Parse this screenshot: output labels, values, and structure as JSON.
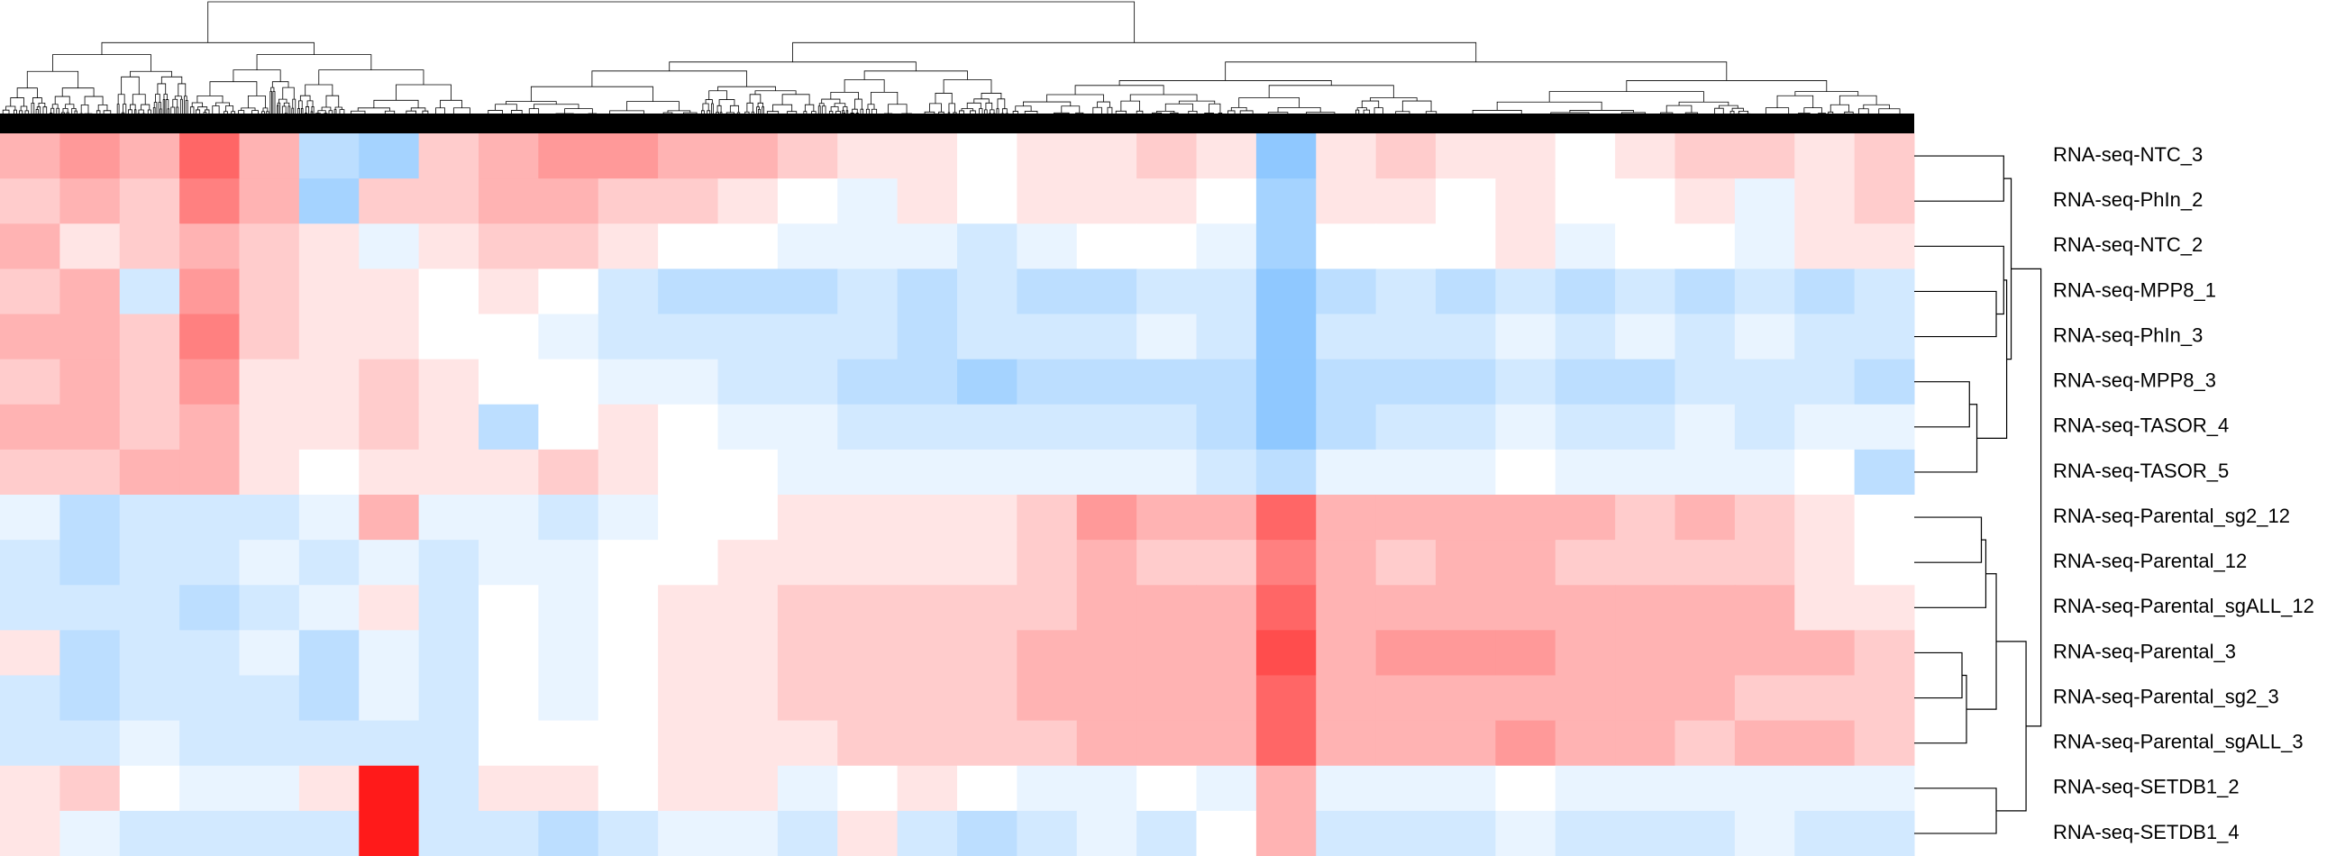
{
  "chart_data": {
    "type": "heatmap",
    "rows": [
      "RNA-seq-NTC_3",
      "RNA-seq-PhIn_2",
      "RNA-seq-NTC_2",
      "RNA-seq-MPP8_1",
      "RNA-seq-PhIn_3",
      "RNA-seq-MPP8_3",
      "RNA-seq-TASOR_4",
      "RNA-seq-TASOR_5",
      "RNA-seq-Parental_sg2_12",
      "RNA-seq-Parental_12",
      "RNA-seq-Parental_sgALL_12",
      "RNA-seq-Parental_3",
      "RNA-seq-Parental_sg2_3",
      "RNA-seq-Parental_sgALL_3",
      "RNA-seq-SETDB1_2",
      "RNA-seq-SETDB1_4"
    ],
    "colors": [
      "#1e90ff",
      "#ffffff",
      "#ff0000"
    ],
    "zlim": [
      -1,
      1
    ],
    "values": [
      [
        0.3,
        0.4,
        0.3,
        0.6,
        0.3,
        -0.3,
        -0.4,
        0.2,
        0.3,
        0.4,
        0.4,
        0.3,
        0.3,
        0.2,
        0.1,
        0.1,
        0.0,
        0.1,
        0.1,
        0.2,
        0.1,
        -0.5,
        0.1,
        0.2,
        0.1,
        0.1,
        0.0,
        0.1,
        0.2,
        0.2,
        0.1,
        0.2
      ],
      [
        0.2,
        0.3,
        0.2,
        0.5,
        0.3,
        -0.4,
        0.2,
        0.2,
        0.3,
        0.3,
        0.2,
        0.2,
        0.1,
        0.0,
        -0.1,
        0.1,
        0.0,
        0.1,
        0.1,
        0.1,
        0.0,
        -0.4,
        0.1,
        0.1,
        0.0,
        0.1,
        0.0,
        0.0,
        0.1,
        -0.1,
        0.1,
        0.2
      ],
      [
        0.3,
        0.1,
        0.2,
        0.3,
        0.2,
        0.1,
        -0.1,
        0.1,
        0.2,
        0.2,
        0.1,
        0.0,
        0.0,
        -0.1,
        -0.1,
        -0.1,
        -0.2,
        -0.1,
        0.0,
        0.0,
        -0.1,
        -0.4,
        0.0,
        0.0,
        0.0,
        0.1,
        -0.1,
        0.0,
        0.0,
        -0.1,
        0.1,
        0.1
      ],
      [
        0.2,
        0.3,
        -0.2,
        0.4,
        0.2,
        0.1,
        0.1,
        0.0,
        0.1,
        0.0,
        -0.2,
        -0.3,
        -0.3,
        -0.3,
        -0.2,
        -0.3,
        -0.2,
        -0.3,
        -0.3,
        -0.2,
        -0.2,
        -0.5,
        -0.3,
        -0.2,
        -0.3,
        -0.2,
        -0.3,
        -0.2,
        -0.3,
        -0.2,
        -0.3,
        -0.2
      ],
      [
        0.3,
        0.3,
        0.2,
        0.5,
        0.2,
        0.1,
        0.1,
        0.0,
        0.0,
        -0.1,
        -0.2,
        -0.2,
        -0.2,
        -0.2,
        -0.2,
        -0.3,
        -0.2,
        -0.2,
        -0.2,
        -0.1,
        -0.2,
        -0.5,
        -0.2,
        -0.2,
        -0.2,
        -0.1,
        -0.2,
        -0.1,
        -0.2,
        -0.1,
        -0.2,
        -0.2
      ],
      [
        0.2,
        0.3,
        0.2,
        0.4,
        0.1,
        0.1,
        0.2,
        0.1,
        0.0,
        0.0,
        -0.1,
        -0.1,
        -0.2,
        -0.2,
        -0.3,
        -0.3,
        -0.4,
        -0.3,
        -0.3,
        -0.3,
        -0.3,
        -0.5,
        -0.3,
        -0.3,
        -0.3,
        -0.2,
        -0.3,
        -0.3,
        -0.2,
        -0.2,
        -0.2,
        -0.3
      ],
      [
        0.3,
        0.3,
        0.2,
        0.3,
        0.1,
        0.1,
        0.2,
        0.1,
        -0.3,
        0.0,
        0.1,
        0.0,
        -0.1,
        -0.1,
        -0.2,
        -0.2,
        -0.2,
        -0.2,
        -0.2,
        -0.2,
        -0.3,
        -0.5,
        -0.3,
        -0.2,
        -0.2,
        -0.1,
        -0.2,
        -0.2,
        -0.1,
        -0.2,
        -0.1,
        -0.1
      ],
      [
        0.2,
        0.2,
        0.3,
        0.3,
        0.1,
        0.0,
        0.1,
        0.1,
        0.1,
        0.2,
        0.1,
        0.0,
        0.0,
        -0.1,
        -0.1,
        -0.1,
        -0.1,
        -0.1,
        -0.1,
        -0.1,
        -0.2,
        -0.3,
        -0.1,
        -0.1,
        -0.1,
        0.0,
        -0.1,
        -0.1,
        -0.1,
        -0.1,
        0.0,
        -0.3
      ],
      [
        -0.1,
        -0.3,
        -0.2,
        -0.2,
        -0.2,
        -0.1,
        0.3,
        -0.1,
        -0.1,
        -0.2,
        -0.1,
        0.0,
        0.0,
        0.1,
        0.1,
        0.1,
        0.1,
        0.2,
        0.4,
        0.3,
        0.3,
        0.6,
        0.3,
        0.3,
        0.3,
        0.3,
        0.3,
        0.2,
        0.3,
        0.2,
        0.1,
        0.0
      ],
      [
        -0.2,
        -0.3,
        -0.2,
        -0.2,
        -0.1,
        -0.2,
        -0.1,
        -0.2,
        -0.1,
        -0.1,
        0.0,
        0.0,
        0.1,
        0.1,
        0.1,
        0.1,
        0.1,
        0.2,
        0.3,
        0.2,
        0.2,
        0.5,
        0.3,
        0.2,
        0.3,
        0.3,
        0.2,
        0.2,
        0.2,
        0.2,
        0.1,
        0.0
      ],
      [
        -0.2,
        -0.2,
        -0.2,
        -0.3,
        -0.2,
        -0.1,
        0.1,
        -0.2,
        0.0,
        -0.1,
        0.0,
        0.1,
        0.1,
        0.2,
        0.2,
        0.2,
        0.2,
        0.2,
        0.3,
        0.3,
        0.3,
        0.6,
        0.3,
        0.3,
        0.3,
        0.3,
        0.3,
        0.3,
        0.3,
        0.3,
        0.1,
        0.1
      ],
      [
        0.1,
        -0.3,
        -0.2,
        -0.2,
        -0.1,
        -0.3,
        -0.1,
        -0.2,
        0.0,
        -0.1,
        0.0,
        0.1,
        0.1,
        0.2,
        0.2,
        0.2,
        0.2,
        0.3,
        0.3,
        0.3,
        0.3,
        0.7,
        0.3,
        0.4,
        0.4,
        0.4,
        0.3,
        0.3,
        0.3,
        0.3,
        0.3,
        0.2
      ],
      [
        -0.2,
        -0.3,
        -0.2,
        -0.2,
        -0.2,
        -0.3,
        -0.1,
        -0.2,
        0.0,
        -0.1,
        0.0,
        0.1,
        0.1,
        0.2,
        0.2,
        0.2,
        0.2,
        0.3,
        0.3,
        0.3,
        0.3,
        0.6,
        0.3,
        0.3,
        0.3,
        0.3,
        0.3,
        0.3,
        0.3,
        0.2,
        0.2,
        0.2
      ],
      [
        -0.2,
        -0.2,
        -0.1,
        -0.2,
        -0.2,
        -0.2,
        -0.2,
        -0.2,
        0.0,
        0.0,
        0.0,
        0.1,
        0.1,
        0.1,
        0.2,
        0.2,
        0.2,
        0.2,
        0.3,
        0.3,
        0.3,
        0.6,
        0.3,
        0.3,
        0.3,
        0.4,
        0.3,
        0.3,
        0.2,
        0.3,
        0.3,
        0.2
      ],
      [
        0.1,
        0.2,
        0.0,
        -0.1,
        -0.1,
        0.1,
        0.9,
        -0.2,
        0.1,
        0.1,
        0.0,
        0.1,
        0.1,
        -0.1,
        0.0,
        0.1,
        0.0,
        -0.1,
        -0.1,
        0.0,
        -0.1,
        0.3,
        -0.1,
        -0.1,
        -0.1,
        0.0,
        -0.1,
        -0.1,
        -0.1,
        -0.1,
        -0.1,
        -0.1
      ],
      [
        0.1,
        -0.1,
        -0.2,
        -0.2,
        -0.2,
        -0.2,
        0.9,
        -0.2,
        -0.2,
        -0.3,
        -0.2,
        -0.1,
        -0.1,
        -0.2,
        0.1,
        -0.2,
        -0.3,
        -0.2,
        -0.1,
        -0.2,
        0.0,
        0.3,
        -0.2,
        -0.2,
        -0.2,
        -0.1,
        -0.2,
        -0.2,
        -0.2,
        -0.1,
        -0.2,
        -0.2
      ]
    ]
  }
}
